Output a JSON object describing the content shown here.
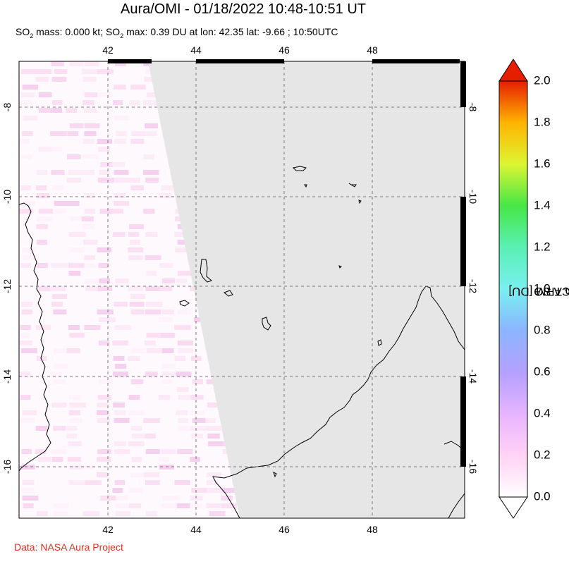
{
  "title": "Aura/OMI - 01/18/2022 10:48-10:51 UT",
  "subtitle": {
    "so2_prefix": "SO",
    "so2_sub": "2",
    "mass_text": " mass: 0.000 kt; SO",
    "max_sub": "2",
    "max_text": " max: 0.39 DU at lon: 42.35 lat: -9.66 ; 10:50UTC"
  },
  "credit": "Data: NASA Aura Project",
  "colorbar": {
    "label_prefix": "PCA SO",
    "label_sub": "2",
    "label_suffix": " column TRM [DU]",
    "ticks": [
      "0.0",
      "0.2",
      "0.4",
      "0.6",
      "0.8",
      "1.0",
      "1.2",
      "1.4",
      "1.6",
      "1.8",
      "2.0"
    ],
    "min": 0.0,
    "max": 2.0,
    "colors": [
      "#ffffff",
      "#ffd2f5",
      "#d7a8ff",
      "#9aa0ff",
      "#7fe0ff",
      "#5af0c0",
      "#3ce830",
      "#dfff30",
      "#ffc000",
      "#ff5000",
      "#e00000"
    ]
  },
  "map": {
    "lon_ticks": [
      "42",
      "44",
      "46",
      "48"
    ],
    "lat_ticks": [
      "-8",
      "-10",
      "-12",
      "-14",
      "-16"
    ],
    "lon_range": [
      40,
      50
    ],
    "lat_range": [
      -17.2,
      -7.0
    ],
    "no_data_color": "#e6e6e6"
  },
  "chart_data": {
    "type": "heatmap",
    "title": "Aura/OMI - 01/18/2022 10:48-10:51 UT",
    "xlabel": "",
    "ylabel": "",
    "x_ticks": [
      42,
      44,
      46,
      48
    ],
    "y_ticks": [
      -8,
      -10,
      -12,
      -14,
      -16
    ],
    "xlim": [
      40,
      50
    ],
    "ylim": [
      -17.2,
      -7.0
    ],
    "colorbar_range": [
      0.0,
      2.0
    ],
    "colorbar_label": "PCA SO2 column TRM [DU]",
    "max_value": 0.39,
    "max_lon": 42.35,
    "max_lat": -9.66,
    "so2_mass_kt": 0.0
  }
}
